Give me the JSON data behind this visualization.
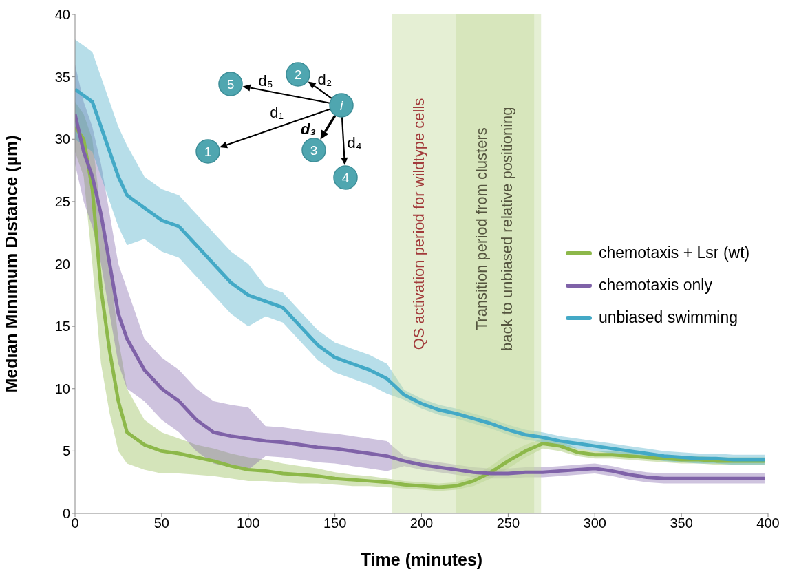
{
  "chart_data": {
    "type": "line",
    "xlabel": "Time (minutes)",
    "ylabel": "Median Minimum Distance (µm)",
    "x": [
      0,
      5,
      10,
      15,
      20,
      25,
      30,
      40,
      50,
      60,
      70,
      80,
      90,
      100,
      110,
      120,
      130,
      140,
      150,
      160,
      170,
      180,
      190,
      200,
      210,
      220,
      230,
      240,
      250,
      260,
      270,
      280,
      290,
      300,
      310,
      320,
      330,
      340,
      350,
      360,
      370,
      380,
      390,
      398
    ],
    "series": [
      {
        "name": "chemotaxis + Lsr (wt)",
        "color": "#8db84a",
        "values": [
          31,
          30,
          26,
          18,
          13,
          9,
          6.5,
          5.5,
          5,
          4.8,
          4.5,
          4.2,
          3.8,
          3.5,
          3.4,
          3.2,
          3.1,
          3,
          2.8,
          2.7,
          2.6,
          2.5,
          2.3,
          2.2,
          2.1,
          2.2,
          2.6,
          3.3,
          4.2,
          5,
          5.6,
          5.4,
          4.9,
          4.7,
          4.7,
          4.6,
          4.5,
          4.4,
          4.3,
          4.3,
          4.2,
          4.2,
          4.2,
          4.2
        ],
        "upper": [
          33,
          32,
          30,
          24,
          20,
          14,
          10,
          7.5,
          6.5,
          6,
          5.5,
          5.2,
          4.8,
          4.5,
          4.3,
          4,
          3.8,
          3.6,
          3.3,
          3.1,
          3,
          2.8,
          2.6,
          2.5,
          2.4,
          2.5,
          3,
          3.8,
          4.8,
          5.5,
          6,
          5.8,
          5.2,
          5,
          5,
          4.9,
          4.8,
          4.7,
          4.6,
          4.6,
          4.5,
          4.5,
          4.5,
          4.5
        ],
        "lower": [
          29,
          27,
          20,
          12,
          8,
          5,
          4,
          3.5,
          3.2,
          3.2,
          3.1,
          3,
          2.8,
          2.6,
          2.6,
          2.5,
          2.4,
          2.4,
          2.3,
          2.2,
          2.2,
          2.1,
          2,
          1.9,
          1.8,
          1.9,
          2.2,
          2.8,
          3.6,
          4.5,
          5.2,
          5,
          4.6,
          4.4,
          4.4,
          4.3,
          4.2,
          4.1,
          4,
          4,
          3.9,
          3.9,
          3.9,
          3.9
        ]
      },
      {
        "name": "chemotaxis only",
        "color": "#7f62a8",
        "values": [
          32,
          29,
          27,
          24,
          20,
          16,
          14,
          11.5,
          10,
          9,
          7.5,
          6.5,
          6.2,
          6,
          5.8,
          5.7,
          5.5,
          5.3,
          5.2,
          5,
          4.8,
          4.6,
          4.2,
          3.9,
          3.7,
          3.5,
          3.3,
          3.2,
          3.2,
          3.3,
          3.3,
          3.4,
          3.5,
          3.6,
          3.4,
          3.1,
          2.9,
          2.8,
          2.8,
          2.8,
          2.8,
          2.8,
          2.8,
          2.8
        ],
        "upper": [
          36,
          33,
          31,
          28,
          24,
          20,
          18,
          14,
          12.5,
          11.5,
          10,
          9,
          8.7,
          8.5,
          7,
          6.9,
          6.7,
          6.5,
          6.4,
          6.2,
          6,
          5.8,
          4.6,
          4.3,
          4.1,
          3.9,
          3.7,
          3.6,
          3.6,
          3.7,
          3.7,
          3.8,
          3.9,
          4,
          3.8,
          3.5,
          3.3,
          3.2,
          3.2,
          3.2,
          3.2,
          3.2,
          3.2,
          3.2
        ],
        "lower": [
          28,
          25,
          23,
          20,
          16,
          12,
          10,
          9,
          7.5,
          6.5,
          5,
          4,
          3.7,
          3.5,
          4.6,
          4.5,
          4.3,
          4.1,
          4,
          3.8,
          3.6,
          3.4,
          3.8,
          3.5,
          3.3,
          3.1,
          2.9,
          2.8,
          2.8,
          2.9,
          2.9,
          3,
          3.1,
          3.2,
          3,
          2.7,
          2.5,
          2.4,
          2.4,
          2.4,
          2.4,
          2.4,
          2.4,
          2.4
        ]
      },
      {
        "name": "unbiased swimming",
        "color": "#43a9c6",
        "values": [
          34,
          33.5,
          33,
          31,
          29,
          27,
          25.5,
          24.5,
          23.5,
          23,
          21.5,
          20,
          18.5,
          17.5,
          17,
          16.5,
          15,
          13.5,
          12.5,
          12,
          11.5,
          10.8,
          9.5,
          8.8,
          8.3,
          8,
          7.6,
          7.2,
          6.7,
          6.3,
          6.1,
          5.8,
          5.6,
          5.4,
          5.2,
          5,
          4.8,
          4.6,
          4.5,
          4.4,
          4.4,
          4.3,
          4.3,
          4.3
        ],
        "upper": [
          38,
          37.5,
          37,
          35,
          33,
          31,
          29.5,
          27,
          26,
          25.5,
          24,
          22.5,
          21,
          20,
          18.2,
          17.7,
          16.2,
          14.7,
          13.7,
          13.2,
          12.7,
          12,
          9.9,
          9.2,
          8.7,
          8.4,
          8,
          7.6,
          7.1,
          6.7,
          6.5,
          6.2,
          6,
          5.8,
          5.6,
          5.4,
          5.2,
          5,
          4.9,
          4.8,
          4.8,
          4.7,
          4.7,
          4.7
        ],
        "lower": [
          30,
          29.5,
          29,
          27,
          25,
          23,
          21.5,
          22,
          21,
          20.5,
          19,
          17.5,
          16,
          15,
          15.8,
          15.3,
          13.8,
          12.3,
          11.3,
          10.8,
          10.3,
          9.6,
          9.1,
          8.4,
          7.9,
          7.6,
          7.2,
          6.8,
          6.3,
          5.9,
          5.7,
          5.4,
          5.2,
          5,
          4.8,
          4.6,
          4.4,
          4.2,
          4.1,
          4,
          4,
          3.9,
          3.9,
          3.9
        ]
      }
    ],
    "xlim": [
      0,
      400
    ],
    "xticks": [
      0,
      50,
      100,
      150,
      200,
      250,
      300,
      350,
      400
    ],
    "ylim": [
      0,
      40
    ],
    "yticks": [
      0,
      5,
      10,
      15,
      20,
      25,
      30,
      35,
      40
    ],
    "bands": [
      {
        "axis": "x",
        "from": 183,
        "to": 269,
        "label": "QS activation period for wildtype cells",
        "color": "#c5dba0"
      },
      {
        "axis": "x",
        "from": 220,
        "to": 265,
        "label": "Transition period from clusters\nback to unbiased relative positioning",
        "color": "#c5dba0"
      }
    ],
    "legend": "right",
    "annotations": [
      "i",
      "1",
      "2",
      "3",
      "4",
      "5",
      "d₁",
      "d₂",
      "d₃",
      "d₄",
      "d₅"
    ]
  }
}
